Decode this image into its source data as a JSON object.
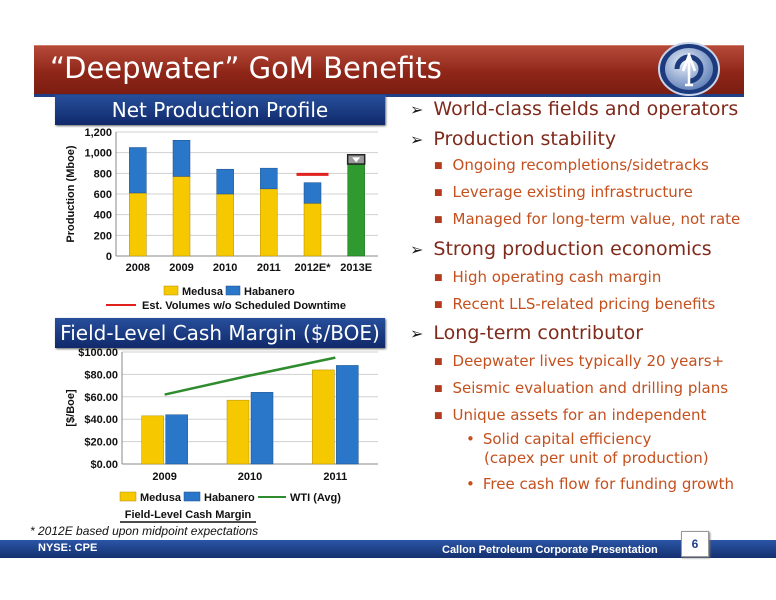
{
  "slide": {
    "title": "“Deepwater” GoM Benefits",
    "footnote": "* 2012E based upon midpoint expectations",
    "footer_left": "NYSE: CPE",
    "footer_right": "Callon Petroleum Corporate Presentation",
    "page_number": "6"
  },
  "section_headers": {
    "production": "Net Production Profile",
    "margin": "Field-Level Cash Margin ($/BOE)"
  },
  "bullets": [
    {
      "level": 1,
      "text": "World-class fields and operators"
    },
    {
      "level": 1,
      "text": "Production stability"
    },
    {
      "level": 2,
      "text": "Ongoing recompletions/sidetracks"
    },
    {
      "level": 2,
      "text": "Leverage existing infrastructure"
    },
    {
      "level": 2,
      "text": "Managed for long-term value, not rate"
    },
    {
      "level": 1,
      "text": "Strong production economics"
    },
    {
      "level": 2,
      "text": "High operating cash margin"
    },
    {
      "level": 2,
      "text": "Recent LLS-related pricing benefits"
    },
    {
      "level": 1,
      "text": "Long-term contributor"
    },
    {
      "level": 2,
      "text": "Deepwater lives typically 20 years+"
    },
    {
      "level": 2,
      "text": "Seismic evaluation and drilling plans"
    },
    {
      "level": 2,
      "text": "Unique assets for an independent"
    },
    {
      "level": 3,
      "text": "Solid capital efficiency"
    },
    {
      "level": 3,
      "text": "(capex per unit of production)",
      "continuation": true
    },
    {
      "level": 3,
      "text": "Free cash flow for funding growth"
    }
  ],
  "chart_data": [
    {
      "type": "bar",
      "stacked": true,
      "categories": [
        "2008",
        "2009",
        "2010",
        "2011",
        "2012E*",
        "2013E"
      ],
      "series": [
        {
          "name": "Medusa",
          "values": [
            610,
            770,
            600,
            650,
            510,
            null
          ]
        },
        {
          "name": "Habanero",
          "values": [
            440,
            350,
            240,
            200,
            200,
            null
          ]
        }
      ],
      "total_2013E": 890,
      "cap_2013E": 90,
      "downtime_line": {
        "label": "Est. Volumes w/o Scheduled Downtime",
        "category": "2012E*",
        "value": 790
      },
      "ylabel": "Production (Mboe)",
      "ylim": [
        0,
        1200
      ],
      "yticks": [
        "0",
        "200",
        "400",
        "600",
        "800",
        "1,000",
        "1,200"
      ],
      "legend": [
        "Medusa",
        "Habanero"
      ],
      "legend_position": "bottom",
      "colors": {
        "medusa": "#f5c800",
        "habanero": "#2a76c8",
        "green": "#2f9a2f",
        "line": "#e0211e"
      }
    },
    {
      "type": "bar",
      "categories": [
        "2009",
        "2010",
        "2011"
      ],
      "series": [
        {
          "name": "Medusa",
          "values": [
            43,
            57,
            84
          ]
        },
        {
          "name": "Habanero",
          "values": [
            44,
            64,
            88
          ]
        }
      ],
      "line": {
        "name": "WTI (Avg)",
        "values": [
          62,
          79,
          95
        ]
      },
      "ylabel": "[$/Boe]",
      "xlabel": "Field-Level Cash Margin",
      "ylim": [
        0,
        100
      ],
      "yticks": [
        "$0.00",
        "$20.00",
        "$40.00",
        "$60.00",
        "$80.00",
        "$100.00"
      ],
      "legend": [
        "Medusa",
        "Habanero",
        "WTI (Avg)"
      ],
      "legend_position": "bottom",
      "colors": {
        "medusa": "#f5c800",
        "habanero": "#2a76c8",
        "line": "#2e8b2e"
      }
    }
  ]
}
